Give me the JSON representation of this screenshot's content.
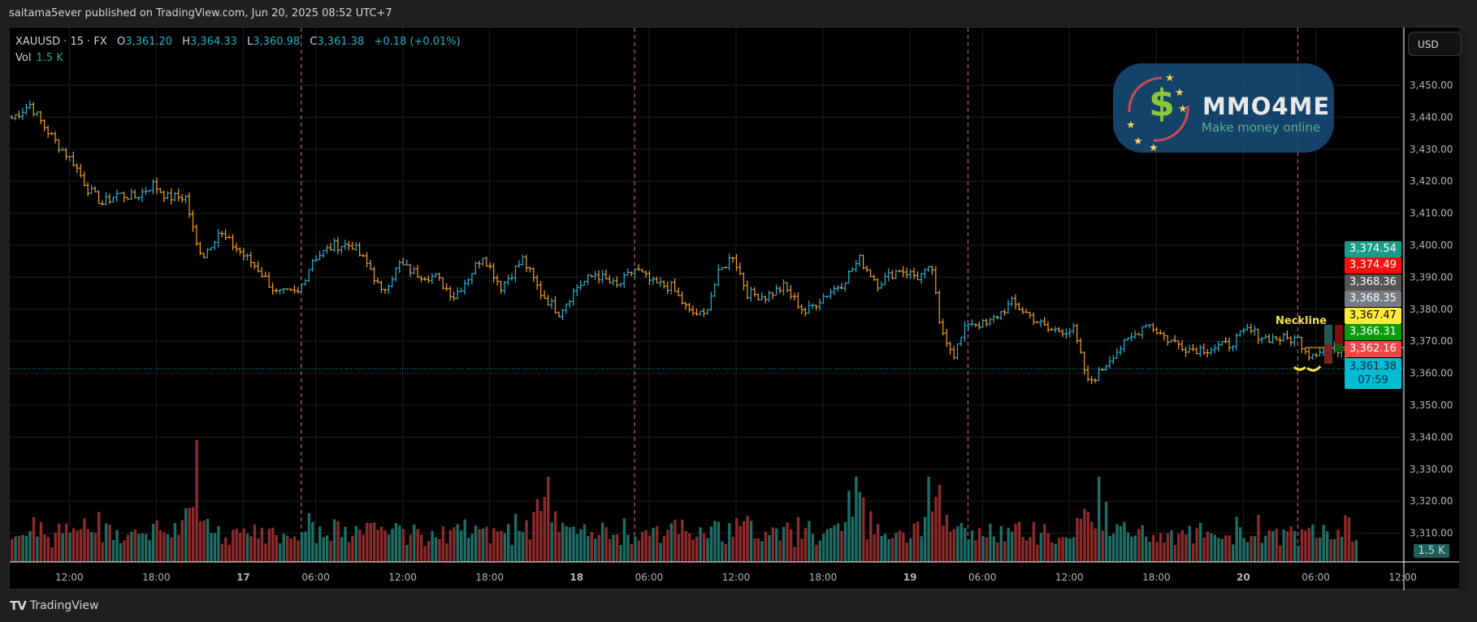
{
  "header": {
    "published": "saitama5ever published on TradingView.com, Jun 20, 2025 08:52 UTC+7"
  },
  "legend": {
    "symbol": "XAUUSD · 15 · FX",
    "o_label": "O",
    "o": "3,361.20",
    "h_label": "H",
    "h": "3,364.33",
    "l_label": "L",
    "l": "3,360.98",
    "c_label": "C",
    "c": "3,361.38",
    "change": "+0.18 (+0.01%)",
    "vol_label": "Vol",
    "vol": "1.5 K"
  },
  "currency_button": "USD",
  "price_axis": {
    "ticks": [
      "3,450.00",
      "3,440.00",
      "3,430.00",
      "3,420.00",
      "3,410.00",
      "3,400.00",
      "3,390.00",
      "3,380.00",
      "3,370.00",
      "3,360.00",
      "3,350.00",
      "3,340.00",
      "3,330.00",
      "3,320.00",
      "3,310.00"
    ],
    "tick_values": [
      3450,
      3440,
      3430,
      3420,
      3410,
      3400,
      3390,
      3380,
      3370,
      3360,
      3350,
      3340,
      3330,
      3320,
      3310
    ],
    "tags": [
      {
        "text": "3,374.54",
        "bg": "#1b9c8a",
        "fg": "#ffffff"
      },
      {
        "text": "3,374.49",
        "bg": "#f70f0f",
        "fg": "#ffffff"
      },
      {
        "text": "3,368.36",
        "bg": "#555555",
        "fg": "#ffffff"
      },
      {
        "text": "3,368.35",
        "bg": "#787b86",
        "fg": "#ffffff"
      },
      {
        "text": "3,367.47",
        "bg": "#ffeb3b",
        "fg": "#000000"
      },
      {
        "text": "3,366.31",
        "bg": "#089c08",
        "fg": "#ffffff"
      },
      {
        "text": "3,362.16",
        "bg": "#f04848",
        "fg": "#ffffff"
      }
    ],
    "last_price": {
      "text": "3,361.38",
      "countdown": "07:59",
      "bg": "#00bcd4",
      "fg": "#0b2a33"
    },
    "volume_tag": "1.5 K"
  },
  "time_axis": {
    "labels": [
      {
        "text": "12:00",
        "bar": 16,
        "bold": false
      },
      {
        "text": "18:00",
        "bar": 40,
        "bold": false
      },
      {
        "text": "17",
        "bar": 64,
        "bold": true
      },
      {
        "text": "06:00",
        "bar": 84,
        "bold": false
      },
      {
        "text": "12:00",
        "bar": 108,
        "bold": false
      },
      {
        "text": "18:00",
        "bar": 132,
        "bold": false
      },
      {
        "text": "18",
        "bar": 156,
        "bold": true
      },
      {
        "text": "06:00",
        "bar": 176,
        "bold": false
      },
      {
        "text": "12:00",
        "bar": 200,
        "bold": false
      },
      {
        "text": "18:00",
        "bar": 224,
        "bold": false
      },
      {
        "text": "19",
        "bar": 248,
        "bold": true
      },
      {
        "text": "06:00",
        "bar": 268,
        "bold": false
      },
      {
        "text": "12:00",
        "bar": 292,
        "bold": false
      },
      {
        "text": "18:00",
        "bar": 316,
        "bold": false
      },
      {
        "text": "20",
        "bar": 340,
        "bold": true
      },
      {
        "text": "06:00",
        "bar": 360,
        "bold": false
      },
      {
        "text": "12:00",
        "bar": 384,
        "bold": false
      }
    ],
    "session_breaks": [
      80,
      172,
      264,
      355
    ]
  },
  "annotations": {
    "neckline_label": "Neckline",
    "neckline_price": 3368.0
  },
  "chart_data": {
    "type": "ohlc",
    "symbol": "XAUUSD",
    "interval_minutes": 15,
    "ylim": [
      3305,
      3462
    ],
    "up_color": "#26b5d8",
    "down_color": "#f7a21b",
    "vol_up_color": "#1f6e66",
    "vol_down_color": "#8e2b2b",
    "bar_count": 372,
    "close_path": [
      [
        0,
        3439.7
      ],
      [
        5,
        3444
      ],
      [
        9,
        3437
      ],
      [
        13,
        3431
      ],
      [
        17,
        3426
      ],
      [
        21,
        3417.6
      ],
      [
        25,
        3413
      ],
      [
        29,
        3416
      ],
      [
        34,
        3415
      ],
      [
        39,
        3419
      ],
      [
        43,
        3415
      ],
      [
        48,
        3415
      ],
      [
        51,
        3400
      ],
      [
        53,
        3397
      ],
      [
        57,
        3404
      ],
      [
        62,
        3399
      ],
      [
        68,
        3392.6
      ],
      [
        73,
        3385
      ],
      [
        79,
        3385
      ],
      [
        83,
        3395.6
      ],
      [
        89,
        3400
      ],
      [
        94,
        3400
      ],
      [
        99,
        3392.6
      ],
      [
        102,
        3385
      ],
      [
        107,
        3394
      ],
      [
        112,
        3391
      ],
      [
        117,
        3390
      ],
      [
        122,
        3384
      ],
      [
        126,
        3390
      ],
      [
        130,
        3397
      ],
      [
        135,
        3387
      ],
      [
        141,
        3395.6
      ],
      [
        146,
        3385
      ],
      [
        151,
        3379
      ],
      [
        156,
        3387
      ],
      [
        161,
        3391
      ],
      [
        167,
        3387
      ],
      [
        172,
        3392.6
      ],
      [
        177,
        3388
      ],
      [
        182,
        3387
      ],
      [
        187,
        3379
      ],
      [
        191,
        3378
      ],
      [
        195,
        3391
      ],
      [
        199,
        3397
      ],
      [
        203,
        3385
      ],
      [
        208,
        3384
      ],
      [
        213,
        3387
      ],
      [
        219,
        3379
      ],
      [
        224,
        3384
      ],
      [
        229,
        3388
      ],
      [
        234,
        3395.6
      ],
      [
        239,
        3388
      ],
      [
        245,
        3392.6
      ],
      [
        250,
        3390
      ],
      [
        254,
        3392.6
      ],
      [
        256,
        3375
      ],
      [
        260,
        3366
      ],
      [
        264,
        3376
      ],
      [
        269,
        3375
      ],
      [
        276,
        3382
      ],
      [
        281,
        3378
      ],
      [
        286,
        3373.5
      ],
      [
        293,
        3373.5
      ],
      [
        297,
        3357
      ],
      [
        300,
        3360
      ],
      [
        304,
        3366
      ],
      [
        310,
        3372
      ],
      [
        313,
        3376
      ],
      [
        319,
        3370.6
      ],
      [
        325,
        3367.6
      ],
      [
        330,
        3367.6
      ],
      [
        336,
        3369
      ],
      [
        341,
        3373.5
      ],
      [
        346,
        3371
      ],
      [
        355,
        3370.6
      ],
      [
        358,
        3366
      ],
      [
        362,
        3367.6
      ],
      [
        367,
        3367.6
      ],
      [
        369,
        3361.8
      ],
      [
        371,
        3361.38
      ]
    ],
    "volume_spikes": [
      [
        51,
        "4.2K"
      ],
      [
        148,
        "3.1K"
      ],
      [
        233,
        "2.8K"
      ],
      [
        253,
        "2.7K"
      ],
      [
        300,
        "1.8K"
      ]
    ]
  }
}
